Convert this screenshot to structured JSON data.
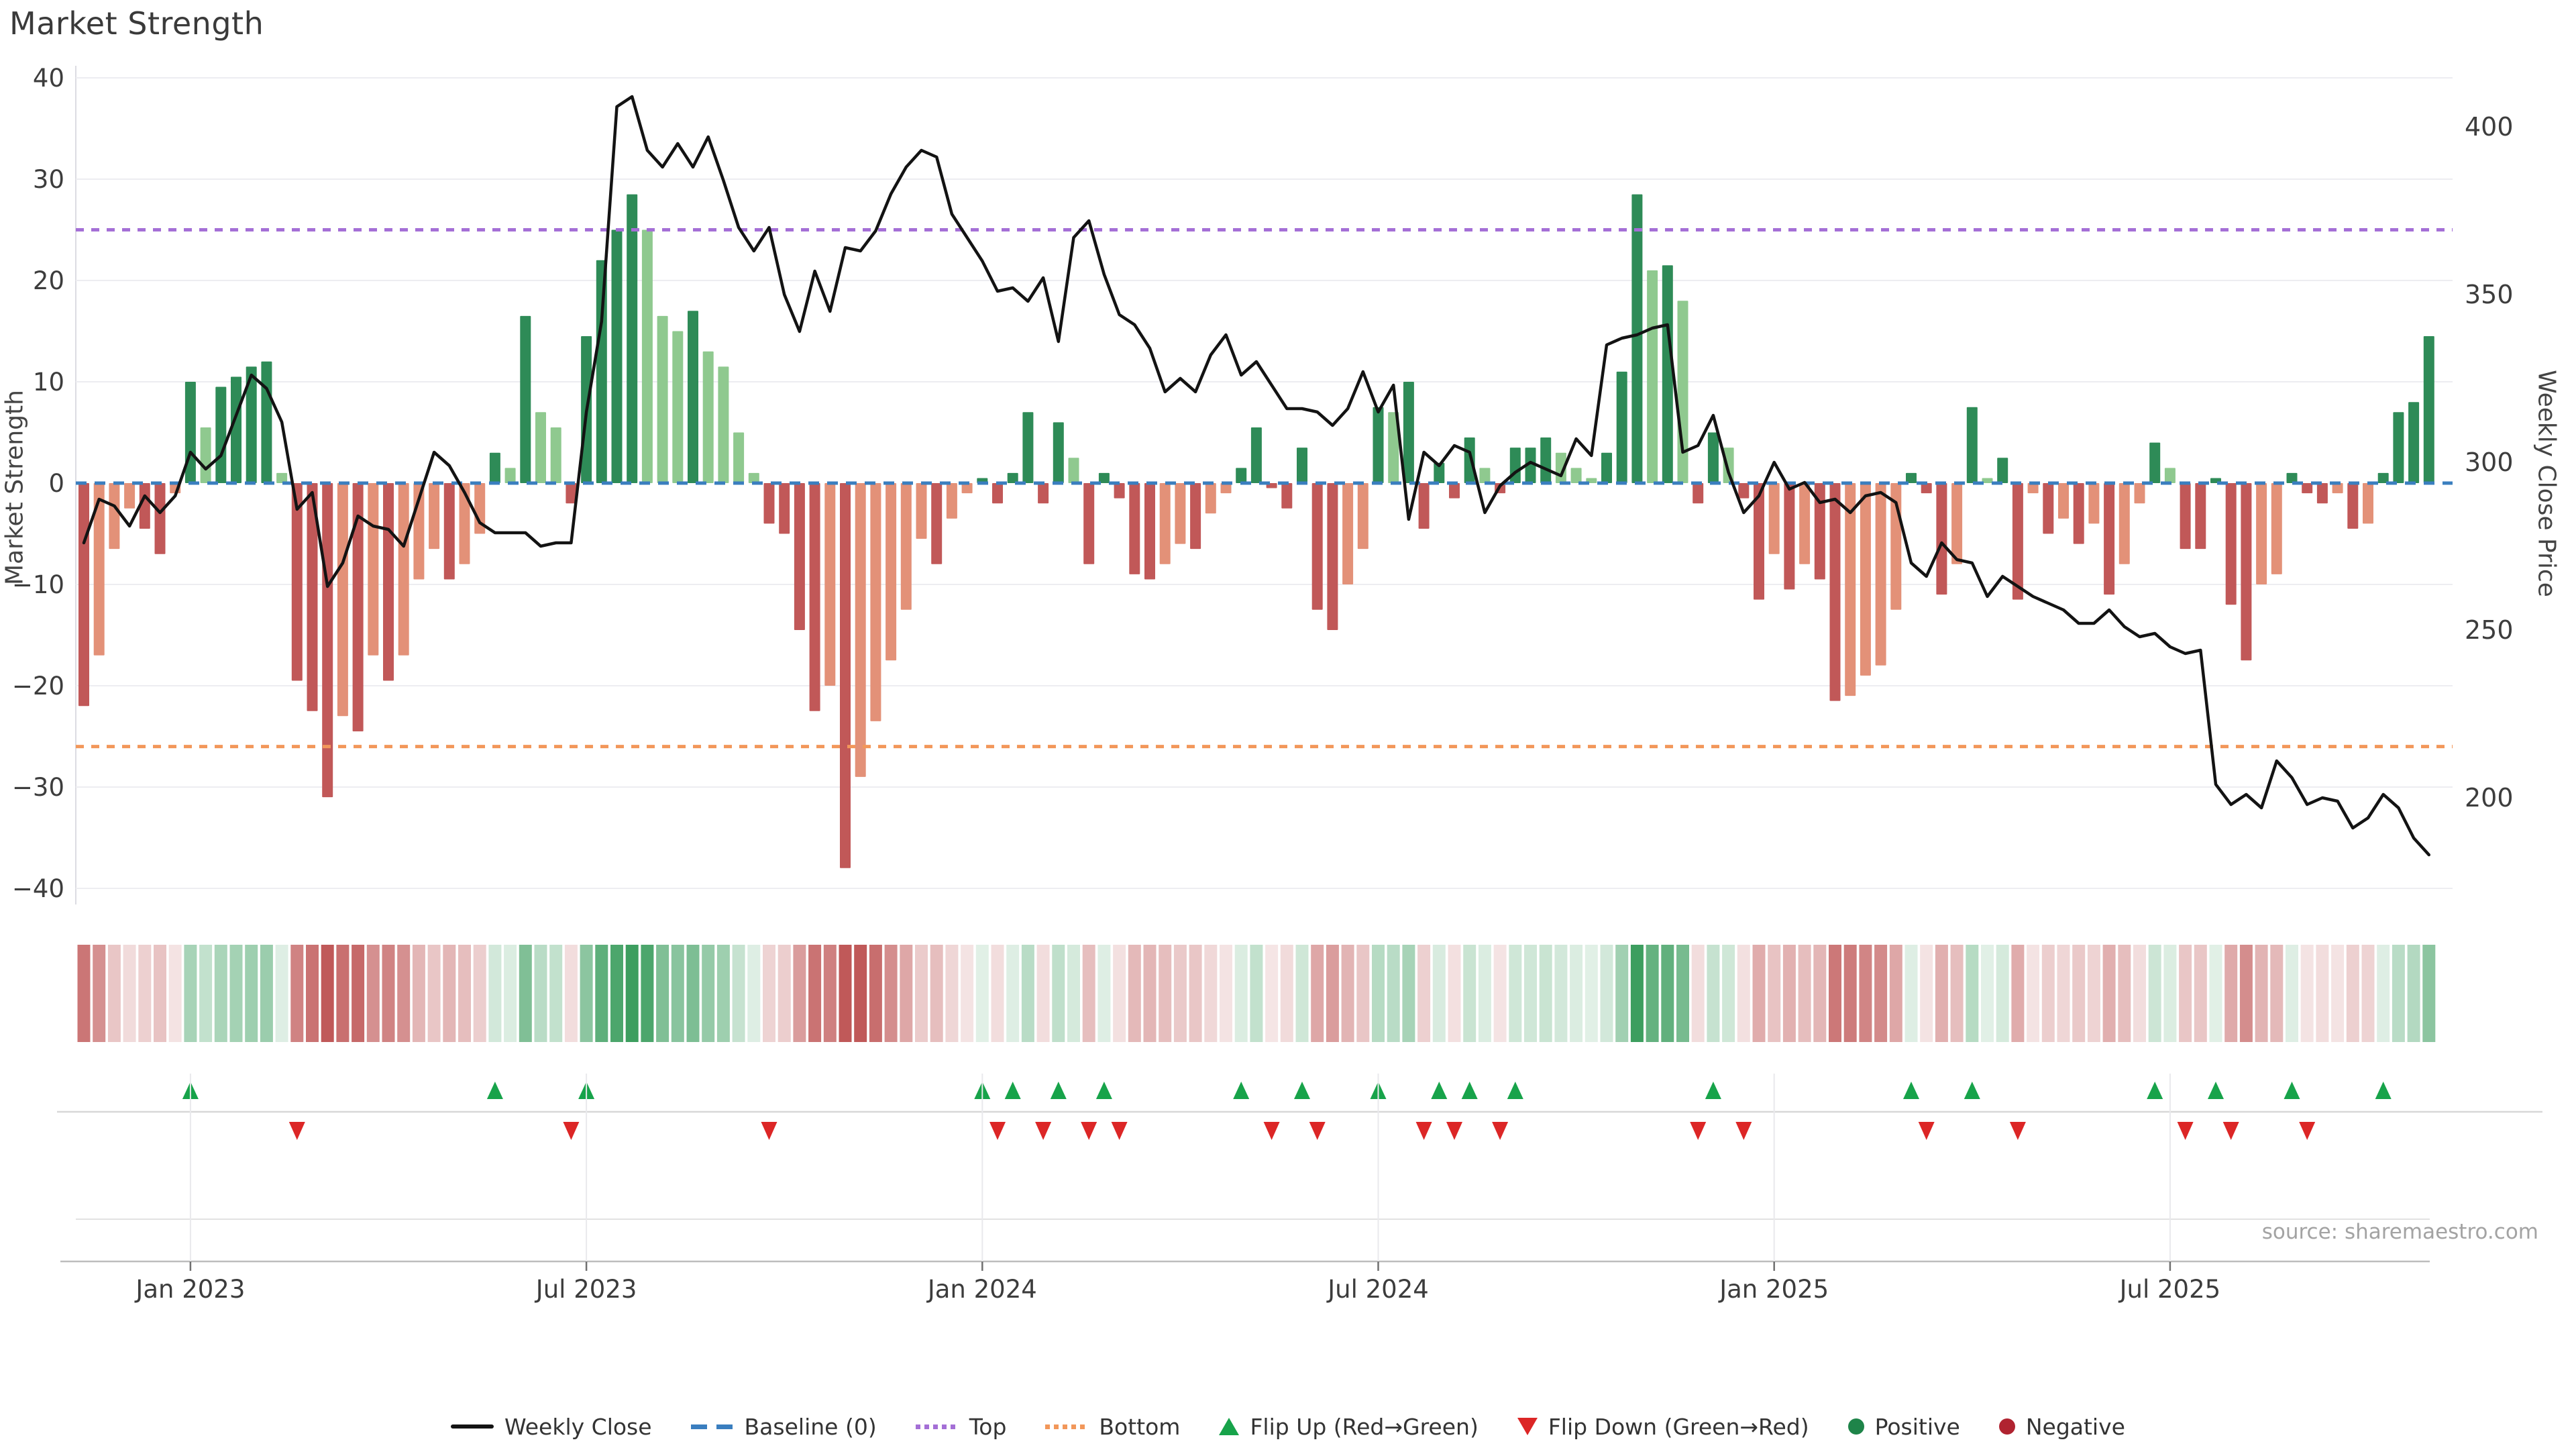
{
  "title": "Market Strength",
  "source": "source: sharemaestro.com",
  "axes": {
    "left_label": "Market Strength",
    "right_label": "Weekly Close Price",
    "left_ticks": [
      {
        "v": 40,
        "label": "40"
      },
      {
        "v": 30,
        "label": "30"
      },
      {
        "v": 20,
        "label": "20"
      },
      {
        "v": 10,
        "label": "10"
      },
      {
        "v": 0,
        "label": "0"
      },
      {
        "v": -10,
        "label": "−10"
      },
      {
        "v": -20,
        "label": "−20"
      },
      {
        "v": -30,
        "label": "−30"
      },
      {
        "v": -40,
        "label": "−40"
      }
    ],
    "right_ticks": [
      {
        "v": 400,
        "label": "400"
      },
      {
        "v": 350,
        "label": "350"
      },
      {
        "v": 300,
        "label": "300"
      },
      {
        "v": 250,
        "label": "250"
      },
      {
        "v": 200,
        "label": "200"
      }
    ],
    "x_ticks": [
      {
        "week": 7,
        "label": "Jan 2023"
      },
      {
        "week": 33,
        "label": "Jul 2023"
      },
      {
        "week": 59,
        "label": "Jan 2024"
      },
      {
        "week": 85,
        "label": "Jul 2024"
      },
      {
        "week": 111,
        "label": "Jan 2025"
      },
      {
        "week": 137,
        "label": "Jul 2025"
      }
    ]
  },
  "chart_data": {
    "type": "bar+line",
    "x_unit": "week",
    "weeks": 155,
    "ylim_left": [
      -40,
      40
    ],
    "thresholds": {
      "baseline": 0,
      "top": 25,
      "bottom": -26
    },
    "series": [
      {
        "name": "Market Strength",
        "type": "bar",
        "values": [
          -22,
          -17,
          -6.5,
          -2.5,
          -4.5,
          -7,
          -1,
          10,
          5.5,
          9.5,
          10.5,
          11.5,
          12,
          1,
          -19.5,
          -22.5,
          -31,
          -23,
          -24.5,
          -17,
          -19.5,
          -17,
          -9.5,
          -6.5,
          -9.5,
          -8,
          -5,
          3,
          1.5,
          16.5,
          7,
          5.5,
          -2,
          14.5,
          22,
          25,
          28.5,
          25,
          16.5,
          15,
          17,
          13,
          11.5,
          5,
          1,
          -4,
          -5,
          -14.5,
          -22.5,
          -20,
          -38,
          -29,
          -23.5,
          -17.5,
          -12.5,
          -5.5,
          -8,
          -3.5,
          -1,
          0.5,
          -2,
          1,
          7,
          -2,
          6,
          2.5,
          -8,
          1,
          -1.5,
          -9,
          -9.5,
          -8,
          -6,
          -6.5,
          -3,
          -1,
          1.5,
          5.5,
          -0.5,
          -2.5,
          3.5,
          -12.5,
          -14.5,
          -10,
          -6.5,
          7.5,
          7,
          10,
          -4.5,
          2,
          -1.5,
          4.5,
          1.5,
          -1,
          3.5,
          3.5,
          4.5,
          3,
          1.5,
          0.5,
          3,
          11,
          28.5,
          21,
          21.5,
          18,
          -2,
          5,
          3.5,
          -1.5,
          -11.5,
          -7,
          -10.5,
          -8,
          -9.5,
          -21.5,
          -21,
          -19,
          -18,
          -12.5,
          1,
          -1,
          -11,
          -8,
          7.5,
          0.5,
          2.5,
          -11.5,
          -1,
          -5,
          -3.5,
          -6,
          -4,
          -11,
          -8,
          -2,
          4,
          1.5,
          -6.5,
          -6.5,
          0.5,
          -12,
          -17.5,
          -10,
          -9,
          1,
          -1,
          -2,
          -1,
          -4.5,
          -4,
          1,
          7,
          8,
          14.5
        ]
      },
      {
        "name": "Weekly Close",
        "type": "line",
        "values": [
          276,
          289,
          287,
          281,
          290,
          285,
          290,
          303,
          298,
          302,
          314,
          326,
          322,
          312,
          286,
          291,
          263,
          270,
          284,
          281,
          280,
          275,
          289,
          303,
          299,
          291,
          282,
          279,
          279,
          279,
          275,
          276,
          276,
          315,
          342,
          406,
          409,
          393,
          388,
          395,
          388,
          397,
          384,
          370,
          363,
          370,
          350,
          339,
          357,
          345,
          364,
          363,
          369,
          380,
          388,
          393,
          391,
          374,
          367,
          360,
          351,
          352,
          348,
          355,
          336,
          367,
          372,
          356,
          344,
          341,
          334,
          321,
          325,
          321,
          332,
          338,
          326,
          330,
          323,
          316,
          316,
          315,
          311,
          316,
          327,
          315,
          323,
          283,
          303,
          299,
          305,
          303,
          285,
          293,
          297,
          300,
          298,
          296,
          307,
          302,
          335,
          337,
          338,
          340,
          341,
          303,
          305,
          314,
          297,
          285,
          290,
          300,
          292,
          294,
          288,
          289,
          285,
          290,
          291,
          288,
          270,
          266,
          276,
          271,
          270,
          260,
          266,
          263,
          260,
          258,
          256,
          252,
          252,
          256,
          251,
          248,
          249,
          245,
          243,
          244,
          204,
          198,
          201,
          197,
          211,
          206,
          198,
          200,
          199,
          191,
          194,
          201,
          197,
          188,
          183
        ]
      }
    ]
  },
  "legend": {
    "items": [
      {
        "label": "Weekly Close",
        "swatch": "line",
        "color": "#131313"
      },
      {
        "label": "Baseline (0)",
        "swatch": "dashes",
        "color": "#3a7ebf"
      },
      {
        "label": "Top",
        "swatch": "dots",
        "color": "#a46fd6"
      },
      {
        "label": "Bottom",
        "swatch": "dots",
        "color": "#f2975a"
      },
      {
        "label": "Flip Up (Red→Green)",
        "swatch": "triangle-up",
        "color": "#17a34a"
      },
      {
        "label": "Flip Down (Green→Red)",
        "swatch": "triangle-down",
        "color": "#dc2626"
      },
      {
        "label": "Positive",
        "swatch": "circle",
        "color": "#1e8449"
      },
      {
        "label": "Negative",
        "swatch": "circle",
        "color": "#b02330"
      }
    ]
  },
  "colors": {
    "positive_dark": "#2e8b57",
    "positive_light": "#8fc98f",
    "negative_dark": "#c15858",
    "negative_light": "#e39178",
    "line": "#131313",
    "baseline": "#3a7ebf",
    "top": "#a46fd6",
    "bottom": "#f2975a",
    "flip_up": "#17a34a",
    "flip_down": "#dc2626",
    "grid": "#ededf1",
    "heat_green": "#3d9e5f",
    "heat_red": "#c05959"
  }
}
